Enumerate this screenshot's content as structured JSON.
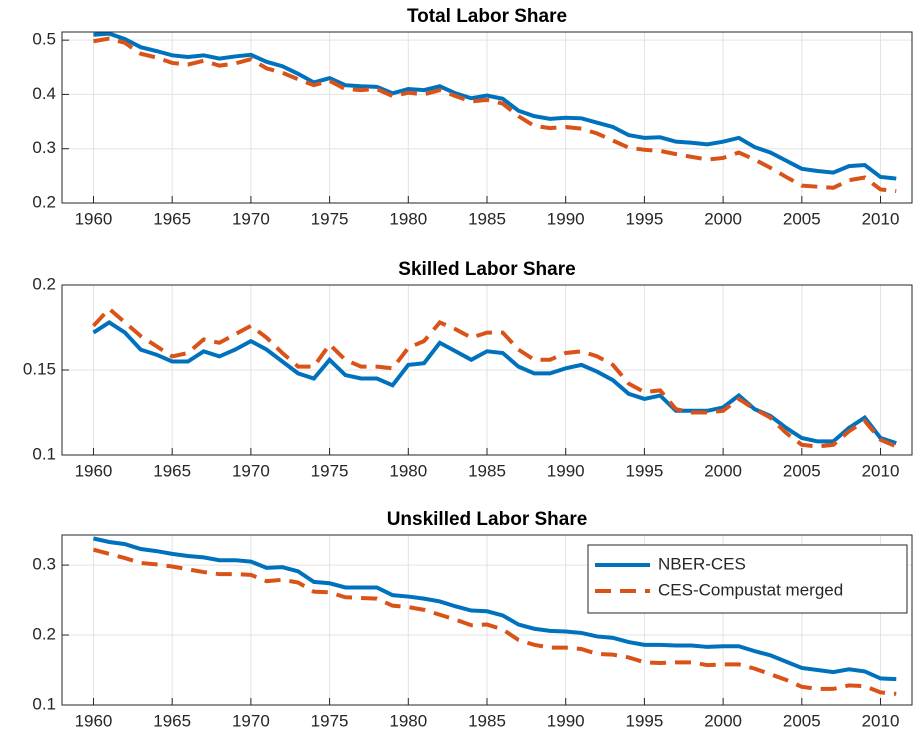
{
  "chart_data": [
    {
      "type": "line",
      "title": "Total Labor Share",
      "x": [
        1960,
        1961,
        1962,
        1963,
        1964,
        1965,
        1966,
        1967,
        1968,
        1969,
        1970,
        1971,
        1972,
        1973,
        1974,
        1975,
        1976,
        1977,
        1978,
        1979,
        1980,
        1981,
        1982,
        1983,
        1984,
        1985,
        1986,
        1987,
        1988,
        1989,
        1990,
        1991,
        1992,
        1993,
        1994,
        1995,
        1996,
        1997,
        1998,
        1999,
        2000,
        2001,
        2002,
        2003,
        2004,
        2005,
        2006,
        2007,
        2008,
        2009,
        2010,
        2011
      ],
      "series": [
        {
          "color": "#0072BD",
          "line_style": "solid",
          "values": [
            0.51,
            0.512,
            0.502,
            0.487,
            0.48,
            0.472,
            0.469,
            0.472,
            0.466,
            0.47,
            0.473,
            0.46,
            0.452,
            0.438,
            0.422,
            0.43,
            0.417,
            0.415,
            0.414,
            0.402,
            0.41,
            0.408,
            0.415,
            0.402,
            0.393,
            0.398,
            0.392,
            0.37,
            0.36,
            0.355,
            0.357,
            0.356,
            0.348,
            0.34,
            0.325,
            0.32,
            0.321,
            0.313,
            0.311,
            0.308,
            0.313,
            0.32,
            0.303,
            0.293,
            0.278,
            0.263,
            0.259,
            0.256,
            0.268,
            0.27,
            0.248,
            0.245
          ]
        },
        {
          "color": "#D95319",
          "line_style": "dashed",
          "values": [
            0.498,
            0.503,
            0.495,
            0.475,
            0.468,
            0.458,
            0.455,
            0.462,
            0.453,
            0.457,
            0.465,
            0.448,
            0.44,
            0.428,
            0.417,
            0.425,
            0.41,
            0.408,
            0.41,
            0.397,
            0.403,
            0.4,
            0.408,
            0.397,
            0.387,
            0.39,
            0.383,
            0.36,
            0.342,
            0.338,
            0.34,
            0.337,
            0.328,
            0.315,
            0.302,
            0.298,
            0.296,
            0.29,
            0.285,
            0.28,
            0.283,
            0.293,
            0.28,
            0.265,
            0.248,
            0.232,
            0.23,
            0.228,
            0.242,
            0.247,
            0.225,
            0.222
          ]
        }
      ],
      "xlim": [
        1958,
        2012
      ],
      "xticks": [
        1960,
        1965,
        1970,
        1975,
        1980,
        1985,
        1990,
        1995,
        2000,
        2005,
        2010
      ],
      "ylim": [
        0.2,
        0.515
      ],
      "yticks": [
        0.2,
        0.3,
        0.4,
        0.5
      ],
      "grid": true
    },
    {
      "type": "line",
      "title": "Skilled Labor Share",
      "x": [
        1960,
        1961,
        1962,
        1963,
        1964,
        1965,
        1966,
        1967,
        1968,
        1969,
        1970,
        1971,
        1972,
        1973,
        1974,
        1975,
        1976,
        1977,
        1978,
        1979,
        1980,
        1981,
        1982,
        1983,
        1984,
        1985,
        1986,
        1987,
        1988,
        1989,
        1990,
        1991,
        1992,
        1993,
        1994,
        1995,
        1996,
        1997,
        1998,
        1999,
        2000,
        2001,
        2002,
        2003,
        2004,
        2005,
        2006,
        2007,
        2008,
        2009,
        2010,
        2011
      ],
      "series": [
        {
          "color": "#0072BD",
          "line_style": "solid",
          "values": [
            0.172,
            0.178,
            0.172,
            0.162,
            0.159,
            0.155,
            0.155,
            0.161,
            0.158,
            0.162,
            0.167,
            0.162,
            0.155,
            0.148,
            0.145,
            0.156,
            0.147,
            0.145,
            0.145,
            0.141,
            0.153,
            0.154,
            0.166,
            0.161,
            0.156,
            0.161,
            0.16,
            0.152,
            0.148,
            0.148,
            0.151,
            0.153,
            0.149,
            0.144,
            0.136,
            0.133,
            0.135,
            0.126,
            0.126,
            0.126,
            0.128,
            0.135,
            0.127,
            0.123,
            0.116,
            0.11,
            0.108,
            0.108,
            0.116,
            0.122,
            0.11,
            0.107
          ]
        },
        {
          "color": "#D95319",
          "line_style": "dashed",
          "values": [
            0.176,
            0.186,
            0.178,
            0.17,
            0.164,
            0.158,
            0.16,
            0.168,
            0.166,
            0.171,
            0.176,
            0.169,
            0.16,
            0.152,
            0.152,
            0.165,
            0.156,
            0.152,
            0.152,
            0.151,
            0.163,
            0.167,
            0.178,
            0.174,
            0.169,
            0.172,
            0.172,
            0.162,
            0.156,
            0.156,
            0.16,
            0.161,
            0.158,
            0.153,
            0.142,
            0.137,
            0.138,
            0.127,
            0.125,
            0.125,
            0.126,
            0.133,
            0.127,
            0.122,
            0.113,
            0.106,
            0.105,
            0.106,
            0.114,
            0.12,
            0.109,
            0.105
          ]
        }
      ],
      "xlim": [
        1958,
        2012
      ],
      "xticks": [
        1960,
        1965,
        1970,
        1975,
        1980,
        1985,
        1990,
        1995,
        2000,
        2005,
        2010
      ],
      "ylim": [
        0.1,
        0.2
      ],
      "yticks": [
        0.1,
        0.15,
        0.2
      ],
      "grid": true
    },
    {
      "type": "line",
      "title": "Unskilled Labor Share",
      "x": [
        1960,
        1961,
        1962,
        1963,
        1964,
        1965,
        1966,
        1967,
        1968,
        1969,
        1970,
        1971,
        1972,
        1973,
        1974,
        1975,
        1976,
        1977,
        1978,
        1979,
        1980,
        1981,
        1982,
        1983,
        1984,
        1985,
        1986,
        1987,
        1988,
        1989,
        1990,
        1991,
        1992,
        1993,
        1994,
        1995,
        1996,
        1997,
        1998,
        1999,
        2000,
        2001,
        2002,
        2003,
        2004,
        2005,
        2006,
        2007,
        2008,
        2009,
        2010,
        2011
      ],
      "series": [
        {
          "name": "NBER-CES",
          "color": "#0072BD",
          "line_style": "solid",
          "values": [
            0.338,
            0.333,
            0.33,
            0.323,
            0.32,
            0.316,
            0.313,
            0.311,
            0.307,
            0.307,
            0.305,
            0.296,
            0.297,
            0.291,
            0.276,
            0.274,
            0.268,
            0.268,
            0.268,
            0.257,
            0.255,
            0.252,
            0.248,
            0.241,
            0.235,
            0.234,
            0.228,
            0.215,
            0.209,
            0.206,
            0.205,
            0.203,
            0.198,
            0.196,
            0.19,
            0.186,
            0.186,
            0.185,
            0.185,
            0.183,
            0.184,
            0.184,
            0.177,
            0.171,
            0.162,
            0.153,
            0.15,
            0.147,
            0.151,
            0.148,
            0.138,
            0.137
          ]
        },
        {
          "name": "CES-Compustat merged",
          "color": "#D95319",
          "line_style": "dashed",
          "values": [
            0.322,
            0.316,
            0.31,
            0.303,
            0.301,
            0.298,
            0.294,
            0.29,
            0.287,
            0.287,
            0.286,
            0.277,
            0.279,
            0.275,
            0.262,
            0.261,
            0.254,
            0.253,
            0.252,
            0.242,
            0.24,
            0.236,
            0.229,
            0.222,
            0.214,
            0.215,
            0.208,
            0.193,
            0.186,
            0.182,
            0.182,
            0.18,
            0.173,
            0.172,
            0.168,
            0.161,
            0.16,
            0.161,
            0.161,
            0.157,
            0.158,
            0.158,
            0.152,
            0.144,
            0.136,
            0.126,
            0.123,
            0.123,
            0.128,
            0.127,
            0.118,
            0.116
          ]
        }
      ],
      "xlim": [
        1958,
        2012
      ],
      "xticks": [
        1960,
        1965,
        1970,
        1975,
        1980,
        1985,
        1990,
        1995,
        2000,
        2005,
        2010
      ],
      "ylim": [
        0.1,
        0.343
      ],
      "yticks": [
        0.1,
        0.2,
        0.3
      ],
      "grid": true,
      "legend": "northeast"
    }
  ]
}
